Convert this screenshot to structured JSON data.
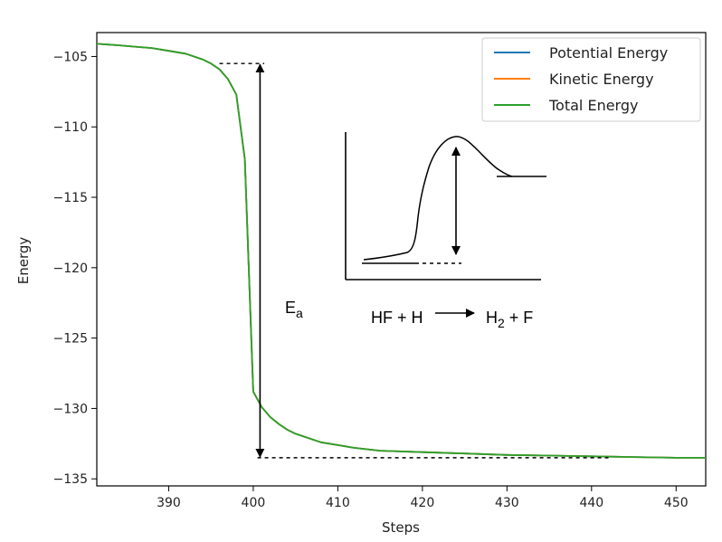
{
  "chart_data": {
    "type": "line",
    "title": "",
    "xlabel": "Steps",
    "ylabel": "Energy",
    "xlim": [
      381.5,
      453.5
    ],
    "ylim": [
      -135.5,
      -103.3
    ],
    "xticks": [
      390,
      400,
      410,
      420,
      430,
      440,
      450
    ],
    "yticks": [
      -105,
      -110,
      -115,
      -120,
      -125,
      -130,
      -135
    ],
    "grid": false,
    "legend": "top-right",
    "series": [
      {
        "name": "Potential Energy",
        "color": "#1f77b4",
        "x": [
          381.5,
          384,
          386,
          388,
          390,
          392,
          393,
          394,
          395,
          396,
          397,
          398,
          399,
          400,
          401,
          402,
          403,
          404,
          405,
          406,
          408,
          410,
          412,
          415,
          420,
          425,
          430,
          435,
          440,
          445,
          450,
          453.5
        ],
        "y": [
          -104.1,
          -104.2,
          -104.3,
          -104.4,
          -104.6,
          -104.8,
          -105.0,
          -105.2,
          -105.5,
          -105.9,
          -106.6,
          -107.7,
          -112.3,
          -128.8,
          -129.9,
          -130.6,
          -131.1,
          -131.5,
          -131.8,
          -132.0,
          -132.4,
          -132.6,
          -132.8,
          -133.0,
          -133.1,
          -133.2,
          -133.3,
          -133.35,
          -133.4,
          -133.45,
          -133.5,
          -133.5
        ]
      },
      {
        "name": "Kinetic Energy",
        "color": "#ff7f0e",
        "x": [
          381.5,
          384,
          386,
          388,
          390,
          392,
          393,
          394,
          395,
          396,
          397,
          398,
          399,
          400,
          401,
          402,
          403,
          404,
          405,
          406,
          408,
          410,
          412,
          415,
          420,
          425,
          430,
          435,
          440,
          445,
          450,
          453.5
        ],
        "y": [
          -104.1,
          -104.2,
          -104.3,
          -104.4,
          -104.6,
          -104.8,
          -105.0,
          -105.2,
          -105.5,
          -105.9,
          -106.6,
          -107.7,
          -112.3,
          -128.8,
          -129.9,
          -130.6,
          -131.1,
          -131.5,
          -131.8,
          -132.0,
          -132.4,
          -132.6,
          -132.8,
          -133.0,
          -133.1,
          -133.2,
          -133.3,
          -133.35,
          -133.4,
          -133.45,
          -133.5,
          -133.5
        ]
      },
      {
        "name": "Total Energy",
        "color": "#2ca02c",
        "x": [
          381.5,
          384,
          386,
          388,
          390,
          392,
          393,
          394,
          395,
          396,
          397,
          398,
          399,
          400,
          401,
          402,
          403,
          404,
          405,
          406,
          408,
          410,
          412,
          415,
          420,
          425,
          430,
          435,
          440,
          445,
          450,
          453.5
        ],
        "y": [
          -104.1,
          -104.2,
          -104.3,
          -104.4,
          -104.6,
          -104.8,
          -105.0,
          -105.2,
          -105.5,
          -105.9,
          -106.6,
          -107.7,
          -112.3,
          -128.8,
          -129.9,
          -130.6,
          -131.1,
          -131.5,
          -131.8,
          -132.0,
          -132.4,
          -132.6,
          -132.8,
          -133.0,
          -133.1,
          -133.2,
          -133.3,
          -133.35,
          -133.4,
          -133.45,
          -133.5,
          -133.5
        ]
      }
    ],
    "annotations": {
      "ea_symbol": "E",
      "ea_subscript": "a",
      "reaction_left": "HF + H",
      "reaction_h": "H",
      "reaction_sub": "2",
      "reaction_tail": " + F",
      "ea_top_y": -105.5,
      "ea_bottom_y": -133.5,
      "ea_arrow_x": 400.8,
      "top_dash_x": [
        396,
        401.3
      ],
      "bottom_dash_x": [
        400.5,
        442
      ]
    }
  }
}
